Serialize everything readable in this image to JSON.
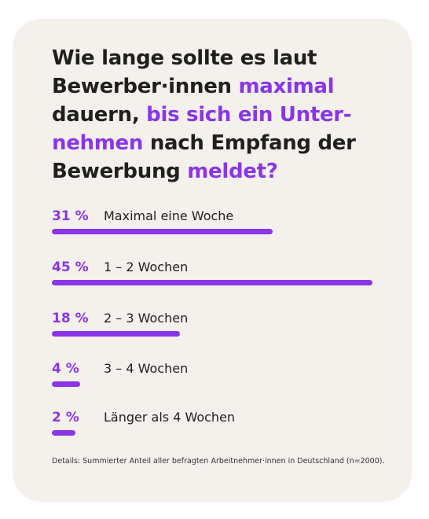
{
  "title_parts": [
    {
      "text": "Wie lange sollte es laut Bewerber·innen ",
      "highlight": false
    },
    {
      "text": "maximal",
      "highlight": true
    },
    {
      "text": " dauern, ",
      "highlight": false
    },
    {
      "text": "bis sich ein Unter-nehmen",
      "highlight": true
    },
    {
      "text": " nach Empfang der Bewerbung ",
      "highlight": false
    },
    {
      "text": "meldet?",
      "highlight": true
    }
  ],
  "colors": {
    "accent": "#8a35e8",
    "text": "#1f1f1f",
    "card_background": "#f4f1ec"
  },
  "chart_data": {
    "type": "bar",
    "orientation": "horizontal",
    "categories": [
      "Maximal eine Woche",
      "1 – 2 Wochen",
      "2 – 3 Wochen",
      "3 – 4 Wochen",
      "Länger als 4 Wochen"
    ],
    "values": [
      31,
      45,
      18,
      4,
      2
    ],
    "value_labels": [
      "31 %",
      "45 %",
      "18 %",
      "4 %",
      "2 %"
    ],
    "unit": "%"
  },
  "footnote": "Details: Summierter Anteil aller befragten Arbeitnehmer·innen in Deutschland (n=2000)."
}
